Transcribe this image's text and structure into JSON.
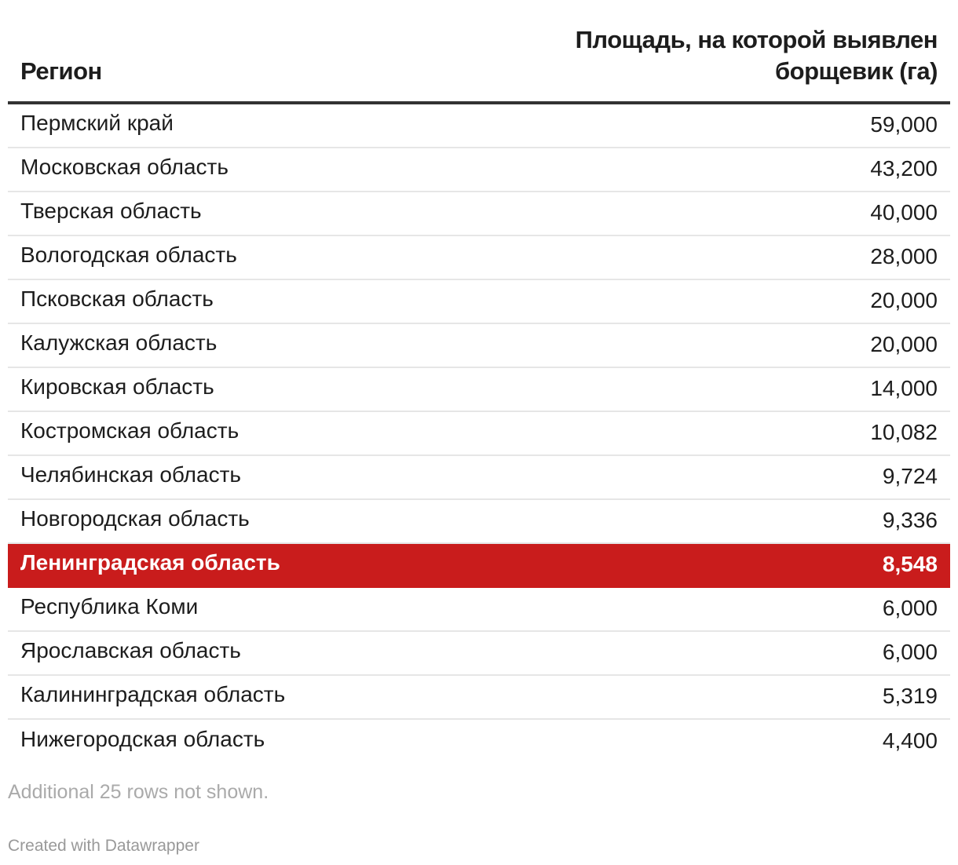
{
  "colors": {
    "highlight_bg": "#c91c1c",
    "highlight_text": "#ffffff",
    "header_rule": "#333333",
    "row_rule": "#e6e6e6",
    "muted_text": "#aaaaaa"
  },
  "table": {
    "headers": {
      "region": "Регион",
      "area": "Площадь, на которой выявлен борщевик (га)"
    }
  },
  "chart_data": {
    "type": "table",
    "columns": [
      "Регион",
      "Площадь, на которой выявлен борщевик (га)"
    ],
    "highlighted_row": "Ленинградская область",
    "rows": [
      {
        "region": "Пермский край",
        "value": "59,000"
      },
      {
        "region": "Московская область",
        "value": "43,200"
      },
      {
        "region": "Тверская область",
        "value": "40,000"
      },
      {
        "region": "Вологодская область",
        "value": "28,000"
      },
      {
        "region": "Псковская область",
        "value": "20,000"
      },
      {
        "region": "Калужская область",
        "value": "20,000"
      },
      {
        "region": "Кировская область",
        "value": "14,000"
      },
      {
        "region": "Костромская область",
        "value": "10,082"
      },
      {
        "region": "Челябинская область",
        "value": "9,724"
      },
      {
        "region": "Новгородская область",
        "value": "9,336"
      },
      {
        "region": "Ленинградская область",
        "value": "8,548"
      },
      {
        "region": "Республика Коми",
        "value": "6,000"
      },
      {
        "region": "Ярославская область",
        "value": "6,000"
      },
      {
        "region": "Калининградская область",
        "value": "5,319"
      },
      {
        "region": "Нижегородская область",
        "value": "4,400"
      }
    ]
  },
  "footnote": "Additional 25 rows not shown.",
  "credit": "Created with Datawrapper"
}
